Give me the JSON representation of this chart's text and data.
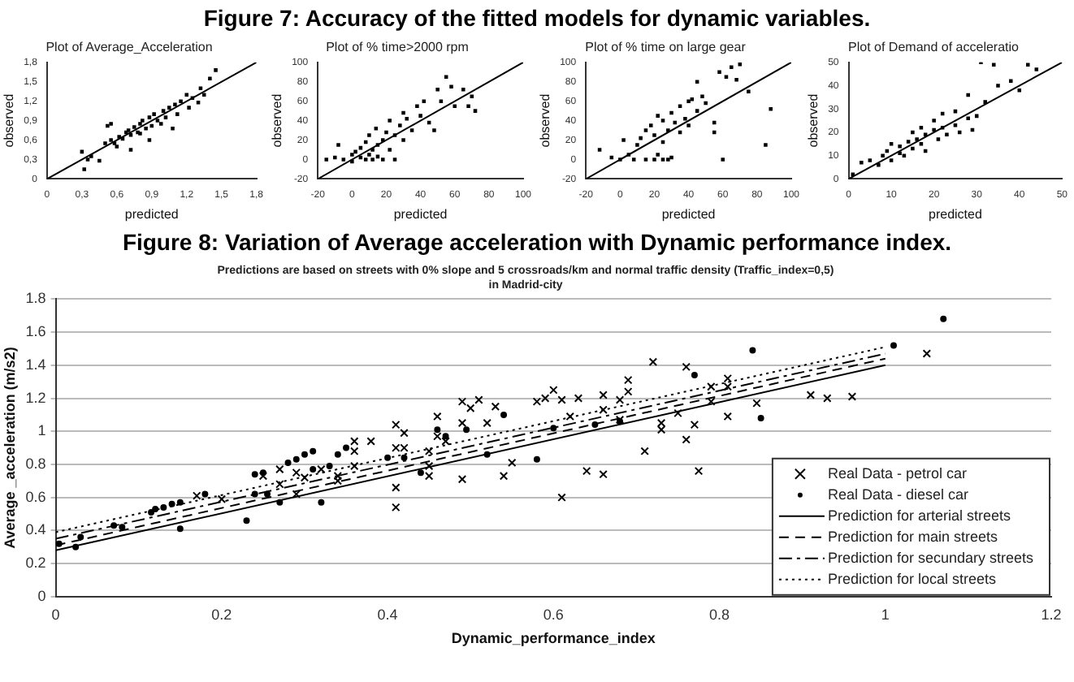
{
  "chart_data": [
    {
      "type": "scatter",
      "title": "Plot of Average_Acceleration",
      "xlabel": "predicted",
      "ylabel": "observed",
      "annotations": [
        "Figure 7: Accuracy of the fitted models for dynamic variables."
      ],
      "xlim": [
        0,
        1.8
      ],
      "ylim": [
        0,
        1.8
      ],
      "xticks": [
        0,
        {
          "value": 0.3,
          "label": "0,3"
        },
        {
          "value": 0.6,
          "label": "0,6"
        },
        {
          "value": 0.9,
          "label": "0,9"
        },
        {
          "value": 1.2,
          "label": "1,2"
        },
        {
          "value": 1.5,
          "label": "1,5"
        },
        {
          "value": 1.8,
          "label": "1,8"
        }
      ],
      "yticks": [
        0,
        {
          "value": 0.3,
          "label": "0,3"
        },
        {
          "value": 0.6,
          "label": "0,6"
        },
        {
          "value": 0.9,
          "label": "0,9"
        },
        {
          "value": 1.2,
          "label": "1,2"
        },
        {
          "value": 1.5,
          "label": "1,5"
        },
        {
          "value": 1.8,
          "label": "1,8"
        }
      ],
      "series": [
        {
          "type": "scatter",
          "color": "#000000",
          "marker": "square",
          "x": [
            0.3,
            0.32,
            0.35,
            0.38,
            0.45,
            0.5,
            0.52,
            0.55,
            0.55,
            0.58,
            0.6,
            0.62,
            0.65,
            0.68,
            0.7,
            0.72,
            0.72,
            0.75,
            0.78,
            0.8,
            0.8,
            0.82,
            0.85,
            0.88,
            0.88,
            0.9,
            0.92,
            0.95,
            0.98,
            1.0,
            1.02,
            1.05,
            1.08,
            1.1,
            1.12,
            1.15,
            1.2,
            1.22,
            1.25,
            1.3,
            1.32,
            1.35,
            1.4,
            1.45
          ],
          "values": [
            0.42,
            0.15,
            0.3,
            0.35,
            0.28,
            0.55,
            0.82,
            0.6,
            0.85,
            0.55,
            0.5,
            0.65,
            0.62,
            0.72,
            0.75,
            0.68,
            0.45,
            0.8,
            0.72,
            0.85,
            0.7,
            0.9,
            0.78,
            0.95,
            0.6,
            0.82,
            1.0,
            0.9,
            0.85,
            1.05,
            0.95,
            1.1,
            0.78,
            1.15,
            1.0,
            1.2,
            1.3,
            1.1,
            1.25,
            1.18,
            1.4,
            1.3,
            1.55,
            1.68
          ]
        },
        {
          "type": "line",
          "color": "#000000",
          "marker": "none",
          "line_style": "solid",
          "x": [
            0,
            1.8
          ],
          "values": [
            0,
            1.8
          ]
        }
      ]
    },
    {
      "type": "scatter",
      "title": "Plot of % time>2000 rpm",
      "xlabel": "predicted",
      "ylabel": "observed",
      "xlim": [
        -20,
        100
      ],
      "ylim": [
        -20,
        100
      ],
      "xticks": [
        -20,
        0,
        20,
        40,
        60,
        80,
        100
      ],
      "yticks": [
        -20,
        0,
        20,
        40,
        60,
        80,
        100
      ],
      "series": [
        {
          "type": "scatter",
          "color": "#000000",
          "marker": "square",
          "x": [
            -15,
            -10,
            -8,
            -5,
            0,
            0,
            2,
            5,
            5,
            8,
            8,
            10,
            10,
            12,
            12,
            14,
            15,
            15,
            18,
            18,
            20,
            22,
            22,
            25,
            25,
            28,
            30,
            30,
            32,
            35,
            38,
            40,
            42,
            45,
            48,
            50,
            52,
            55,
            58,
            60,
            65,
            68,
            70,
            72
          ],
          "values": [
            0,
            2,
            15,
            0,
            5,
            -2,
            8,
            2,
            12,
            0,
            18,
            5,
            25,
            0,
            10,
            32,
            3,
            15,
            20,
            0,
            28,
            10,
            40,
            0,
            25,
            35,
            20,
            48,
            42,
            30,
            55,
            45,
            60,
            38,
            30,
            72,
            60,
            85,
            75,
            55,
            72,
            55,
            65,
            50
          ]
        },
        {
          "type": "line",
          "color": "#000000",
          "marker": "none",
          "line_style": "solid",
          "x": [
            -20,
            100
          ],
          "values": [
            -20,
            100
          ]
        }
      ]
    },
    {
      "type": "scatter",
      "title": "Plot of % time on large gear",
      "xlabel": "predicted",
      "ylabel": "observed",
      "xlim": [
        -20,
        100
      ],
      "ylim": [
        -20,
        100
      ],
      "xticks": [
        -20,
        0,
        20,
        40,
        60,
        80,
        100
      ],
      "yticks": [
        -20,
        0,
        20,
        40,
        60,
        80,
        100
      ],
      "series": [
        {
          "type": "scatter",
          "color": "#000000",
          "marker": "square",
          "x": [
            -12,
            -5,
            0,
            2,
            5,
            8,
            10,
            12,
            15,
            15,
            18,
            20,
            20,
            22,
            22,
            25,
            25,
            25,
            28,
            28,
            30,
            30,
            32,
            35,
            35,
            38,
            40,
            40,
            42,
            45,
            45,
            48,
            50,
            55,
            55,
            58,
            60,
            62,
            65,
            68,
            70,
            75,
            85,
            88
          ],
          "values": [
            10,
            2,
            0,
            20,
            5,
            0,
            15,
            22,
            0,
            30,
            35,
            0,
            25,
            5,
            45,
            0,
            40,
            18,
            30,
            0,
            48,
            2,
            38,
            55,
            28,
            42,
            35,
            60,
            62,
            50,
            80,
            65,
            58,
            28,
            38,
            90,
            0,
            85,
            95,
            82,
            98,
            70,
            15,
            52
          ]
        },
        {
          "type": "line",
          "color": "#000000",
          "marker": "none",
          "line_style": "solid",
          "x": [
            -20,
            100
          ],
          "values": [
            -20,
            100
          ]
        }
      ]
    },
    {
      "type": "scatter",
      "title": "Plot of Demand of acceleratio",
      "xlabel": "predicted",
      "ylabel": "observed",
      "xlim": [
        0,
        50
      ],
      "ylim": [
        0,
        50
      ],
      "xticks": [
        0,
        10,
        20,
        30,
        40,
        50
      ],
      "yticks": [
        0,
        10,
        20,
        30,
        40,
        50
      ],
      "series": [
        {
          "type": "scatter",
          "color": "#000000",
          "marker": "square",
          "x": [
            1,
            3,
            5,
            7,
            8,
            9,
            10,
            10,
            12,
            12,
            13,
            14,
            15,
            15,
            16,
            17,
            17,
            18,
            18,
            20,
            20,
            21,
            22,
            22,
            23,
            25,
            25,
            26,
            28,
            28,
            29,
            30,
            31,
            32,
            34,
            35,
            38,
            40,
            42,
            44
          ],
          "values": [
            2,
            7,
            8,
            6,
            10,
            12,
            8,
            15,
            11,
            14,
            10,
            16,
            13,
            20,
            17,
            15,
            22,
            12,
            19,
            21,
            25,
            17,
            28,
            22,
            19,
            23,
            29,
            20,
            26,
            36,
            21,
            27,
            50,
            33,
            49,
            40,
            42,
            38,
            49,
            47
          ]
        },
        {
          "type": "line",
          "color": "#000000",
          "marker": "none",
          "line_style": "solid",
          "x": [
            0,
            50
          ],
          "values": [
            0,
            50
          ]
        }
      ]
    },
    {
      "type": "scatter",
      "title": "Predictions are based on streets with 0% slope and 5 crossroads/km and normal traffic density (Traffic_index=0,5)\nin Madrid-city",
      "xlabel": "Dynamic_performance_index",
      "ylabel": "Average _acceleration (m/s2)",
      "annotations": [
        "Figure 8: Variation of Average acceleration with Dynamic performance index."
      ],
      "xlim": [
        0,
        1.2
      ],
      "ylim": [
        0,
        1.8
      ],
      "xticks": [
        0,
        0.2,
        0.4,
        0.6,
        0.8,
        1,
        1.2
      ],
      "yticks": [
        0,
        0.2,
        0.4,
        0.6,
        0.8,
        1,
        1.2,
        1.4,
        1.6,
        1.8
      ],
      "grid": "y",
      "legend": "bottom right",
      "series": [
        {
          "type": "scatter",
          "name": "Real Data - petrol car",
          "color": "#000000",
          "marker": "cross",
          "x": [
            0.17,
            0.2,
            0.25,
            0.27,
            0.27,
            0.29,
            0.29,
            0.3,
            0.32,
            0.34,
            0.34,
            0.36,
            0.36,
            0.36,
            0.38,
            0.41,
            0.41,
            0.41,
            0.41,
            0.42,
            0.42,
            0.45,
            0.45,
            0.45,
            0.46,
            0.46,
            0.47,
            0.49,
            0.49,
            0.49,
            0.5,
            0.51,
            0.52,
            0.53,
            0.54,
            0.55,
            0.58,
            0.59,
            0.6,
            0.61,
            0.61,
            0.62,
            0.63,
            0.64,
            0.66,
            0.66,
            0.66,
            0.68,
            0.68,
            0.69,
            0.69,
            0.71,
            0.72,
            0.73,
            0.73,
            0.75,
            0.76,
            0.76,
            0.77,
            0.775,
            0.79,
            0.79,
            0.81,
            0.81,
            0.81,
            0.845,
            0.91,
            0.93,
            0.96,
            1.05
          ],
          "values": [
            0.61,
            0.59,
            0.73,
            0.77,
            0.68,
            0.75,
            0.62,
            0.72,
            0.77,
            0.73,
            0.7,
            0.94,
            0.88,
            0.79,
            0.94,
            0.66,
            0.54,
            1.04,
            0.9,
            0.9,
            0.99,
            0.79,
            0.88,
            0.73,
            1.09,
            0.97,
            0.94,
            1.18,
            1.05,
            0.71,
            1.14,
            1.19,
            1.05,
            1.15,
            0.73,
            0.81,
            1.18,
            1.2,
            1.25,
            1.19,
            0.6,
            1.09,
            1.2,
            0.76,
            1.22,
            1.13,
            0.74,
            1.19,
            1.07,
            1.31,
            1.24,
            0.88,
            1.42,
            1.05,
            1.01,
            1.11,
            0.95,
            1.39,
            1.04,
            0.76,
            1.27,
            1.18,
            1.27,
            1.32,
            1.09,
            1.17,
            1.22,
            1.2,
            1.21,
            1.47
          ]
        },
        {
          "type": "scatter",
          "name": "Real Data - diesel car",
          "color": "#000000",
          "marker": "circle",
          "x": [
            0.004,
            0.024,
            0.03,
            0.07,
            0.08,
            0.115,
            0.12,
            0.13,
            0.14,
            0.15,
            0.15,
            0.18,
            0.23,
            0.24,
            0.24,
            0.25,
            0.255,
            0.27,
            0.28,
            0.29,
            0.3,
            0.31,
            0.31,
            0.32,
            0.33,
            0.34,
            0.35,
            0.4,
            0.42,
            0.44,
            0.46,
            0.47,
            0.495,
            0.52,
            0.54,
            0.58,
            0.6,
            0.65,
            0.68,
            0.77,
            0.84,
            0.85,
            1.01,
            1.07
          ],
          "values": [
            0.32,
            0.3,
            0.36,
            0.43,
            0.42,
            0.51,
            0.53,
            0.54,
            0.56,
            0.41,
            0.57,
            0.62,
            0.46,
            0.74,
            0.62,
            0.75,
            0.62,
            0.57,
            0.81,
            0.83,
            0.86,
            0.77,
            0.88,
            0.57,
            0.79,
            0.86,
            0.9,
            0.84,
            0.84,
            0.75,
            1.01,
            0.97,
            1.01,
            0.86,
            1.1,
            0.83,
            1.02,
            1.04,
            1.06,
            1.34,
            1.49,
            1.08,
            1.52,
            1.68
          ]
        },
        {
          "type": "line",
          "name": "Prediction for arterial streets",
          "color": "#000000",
          "marker": "none",
          "line_style": "solid",
          "x": [
            0,
            1
          ],
          "values": [
            0.28,
            1.4
          ]
        },
        {
          "type": "line",
          "name": "Prediction for main streets",
          "color": "#000000",
          "marker": "none",
          "line_style": "dashed",
          "x": [
            0,
            1
          ],
          "values": [
            0.31,
            1.44
          ]
        },
        {
          "type": "line",
          "name": "Prediction for secundary streets",
          "color": "#000000",
          "marker": "none",
          "line_style": "dashdot",
          "x": [
            0,
            1
          ],
          "values": [
            0.35,
            1.47
          ]
        },
        {
          "type": "line",
          "name": "Prediction for local streets",
          "color": "#000000",
          "marker": "none",
          "line_style": "dotted",
          "x": [
            0,
            1
          ],
          "values": [
            0.39,
            1.51
          ]
        }
      ]
    }
  ]
}
